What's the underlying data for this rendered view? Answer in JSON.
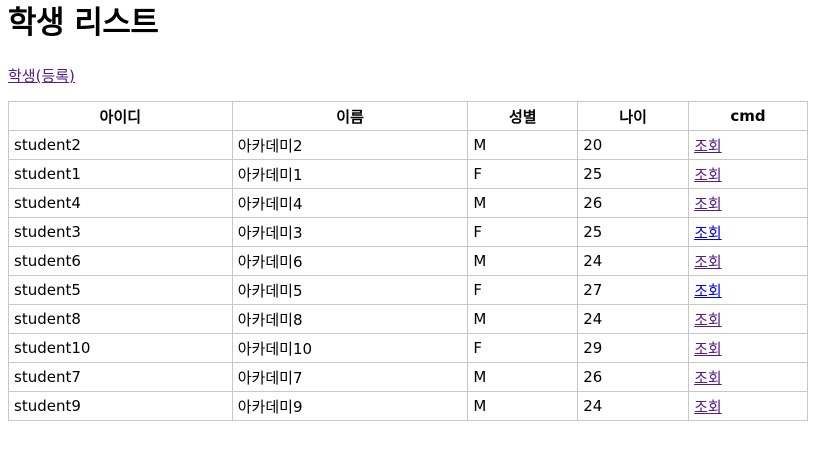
{
  "page": {
    "title": "학생 리스트",
    "register_link": "학생(등록)"
  },
  "table": {
    "headers": {
      "id": "아이디",
      "name": "이름",
      "gender": "성별",
      "age": "나이",
      "cmd": "cmd"
    },
    "rows": [
      {
        "id": "student2",
        "name": "아카데미2",
        "gender": "M",
        "age": "20",
        "cmd": "조회"
      },
      {
        "id": "student1",
        "name": "아카데미1",
        "gender": "F",
        "age": "25",
        "cmd": "조회"
      },
      {
        "id": "student4",
        "name": "아카데미4",
        "gender": "M",
        "age": "26",
        "cmd": "조회"
      },
      {
        "id": "student3",
        "name": "아카데미3",
        "gender": "F",
        "age": "25",
        "cmd": "조회"
      },
      {
        "id": "student6",
        "name": "아카데미6",
        "gender": "M",
        "age": "24",
        "cmd": "조회"
      },
      {
        "id": "student5",
        "name": "아카데미5",
        "gender": "F",
        "age": "27",
        "cmd": "조회"
      },
      {
        "id": "student8",
        "name": "아카데미8",
        "gender": "M",
        "age": "24",
        "cmd": "조회"
      },
      {
        "id": "student10",
        "name": "아카데미10",
        "gender": "F",
        "age": "29",
        "cmd": "조회"
      },
      {
        "id": "student7",
        "name": "아카데미7",
        "gender": "M",
        "age": "26",
        "cmd": "조회"
      },
      {
        "id": "student9",
        "name": "아카데미9",
        "gender": "M",
        "age": "24",
        "cmd": "조회"
      }
    ]
  },
  "colors": {
    "visited_link": "#551a8b",
    "unvisited_link": "#0000ee",
    "border": "#c8c8c8"
  }
}
